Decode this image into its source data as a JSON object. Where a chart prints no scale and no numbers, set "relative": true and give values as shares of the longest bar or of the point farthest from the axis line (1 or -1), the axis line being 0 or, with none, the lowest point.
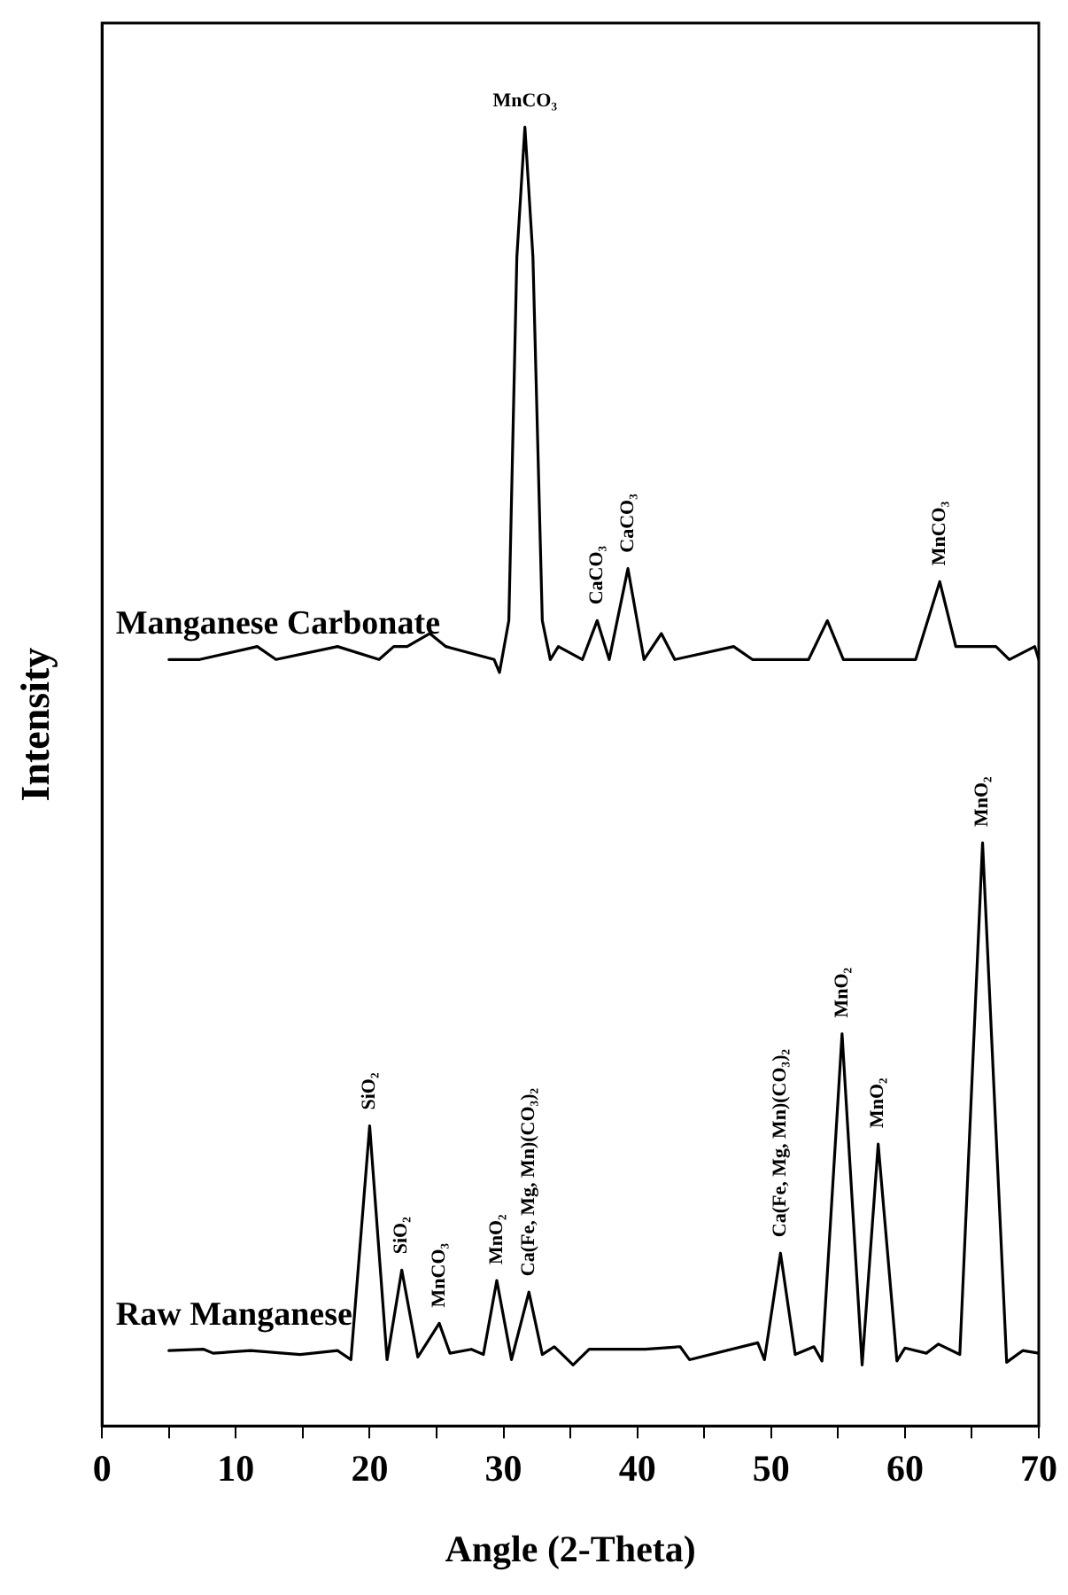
{
  "chart_data": {
    "type": "line",
    "xlabel": "Angle (2-Theta)",
    "ylabel": "Intensity",
    "relative": true,
    "legend": false,
    "grid": false,
    "marker": "none",
    "line_style": "solid",
    "xlim": [
      0,
      70
    ],
    "xticks": [
      0,
      {
        "value": 5,
        "label": null
      },
      10,
      {
        "value": 15,
        "label": null
      },
      20,
      {
        "value": 25,
        "label": null
      },
      30,
      {
        "value": 35,
        "label": null
      },
      40,
      {
        "value": 45,
        "label": null
      },
      50,
      {
        "value": 55,
        "label": null
      },
      60,
      {
        "value": 65,
        "label": null
      },
      70
    ],
    "series": [
      {
        "name": "Manganese Carbonate",
        "color": "#000000",
        "x": [
          5.0,
          6.4,
          7.3,
          11.6,
          13.0,
          17.6,
          20.7,
          21.8,
          22.8,
          24.5,
          25.7,
          29.3,
          29.7,
          30.4,
          31.0,
          31.6,
          32.2,
          32.9,
          33.5,
          34.1,
          35.9,
          37.0,
          37.9,
          39.3,
          40.5,
          41.8,
          42.8,
          47.2,
          48.6,
          52.8,
          54.2,
          55.4,
          60.8,
          62.6,
          63.8,
          65.4,
          66.8,
          67.8,
          69.7,
          70.0
        ],
        "values": [
          0.59,
          0.59,
          0.59,
          0.6,
          0.59,
          0.6,
          0.59,
          0.6,
          0.6,
          0.61,
          0.6,
          0.59,
          0.58,
          0.62,
          0.9,
          1.0,
          0.9,
          0.62,
          0.59,
          0.6,
          0.59,
          0.62,
          0.59,
          0.66,
          0.59,
          0.61,
          0.59,
          0.6,
          0.59,
          0.59,
          0.62,
          0.59,
          0.59,
          0.65,
          0.6,
          0.6,
          0.6,
          0.59,
          0.6,
          0.59
        ]
      },
      {
        "name": "Raw Manganese",
        "color": "#000000",
        "x": [
          5.0,
          7.6,
          8.3,
          11.1,
          14.8,
          17.6,
          18.6,
          20.0,
          21.3,
          22.4,
          23.6,
          25.2,
          26.0,
          27.6,
          28.5,
          29.5,
          30.6,
          31.9,
          32.9,
          33.8,
          35.2,
          36.4,
          40.6,
          43.2,
          43.9,
          49.0,
          49.5,
          50.7,
          51.8,
          53.2,
          53.8,
          55.3,
          56.8,
          58.0,
          59.4,
          60.0,
          61.6,
          62.5,
          64.1,
          65.8,
          67.6,
          68.8,
          70.0
        ],
        "values": [
          0.058,
          0.059,
          0.056,
          0.058,
          0.055,
          0.058,
          0.051,
          0.231,
          0.051,
          0.12,
          0.053,
          0.079,
          0.056,
          0.059,
          0.055,
          0.112,
          0.051,
          0.103,
          0.055,
          0.061,
          0.047,
          0.059,
          0.059,
          0.061,
          0.051,
          0.064,
          0.051,
          0.133,
          0.055,
          0.061,
          0.05,
          0.302,
          0.047,
          0.217,
          0.05,
          0.06,
          0.056,
          0.063,
          0.055,
          0.449,
          0.049,
          0.058,
          0.056
        ]
      }
    ],
    "annotations": [
      {
        "text": "MnCO₃",
        "x": 31.6,
        "y": 1.0
      },
      {
        "text": "CaCO₃",
        "x": 37.0,
        "y": 0.62
      },
      {
        "text": "CaCO₃",
        "x": 39.3,
        "y": 0.66
      },
      {
        "text": "MnCO₃",
        "x": 62.6,
        "y": 0.65
      },
      {
        "text": "SiO₂",
        "x": 20.0,
        "y": 0.231
      },
      {
        "text": "SiO₂",
        "x": 22.4,
        "y": 0.12
      },
      {
        "text": "MnCO₃",
        "x": 25.2,
        "y": 0.079
      },
      {
        "text": "MnO₂",
        "x": 29.5,
        "y": 0.112
      },
      {
        "text": "Ca(Fe, Mg, Mn)(CO₃)₂",
        "x": 31.9,
        "y": 0.103
      },
      {
        "text": "Ca(Fe, Mg, Mn)(CO₃)₂",
        "x": 50.7,
        "y": 0.133
      },
      {
        "text": "MnO₂",
        "x": 55.3,
        "y": 0.302
      },
      {
        "text": "MnO₂",
        "x": 58.0,
        "y": 0.217
      },
      {
        "text": "MnO₂",
        "x": 65.8,
        "y": 0.449
      }
    ]
  }
}
